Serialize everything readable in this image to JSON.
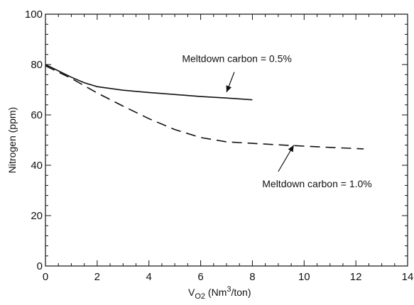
{
  "chart_data": {
    "type": "line",
    "xlim": [
      0,
      14
    ],
    "ylim": [
      0,
      100
    ],
    "x_ticks": [
      0,
      2,
      4,
      6,
      8,
      10,
      12,
      14
    ],
    "y_ticks": [
      0,
      20,
      40,
      60,
      80,
      100
    ],
    "x_tick_labels": [
      "0",
      "2",
      "4",
      "6",
      "8",
      "10",
      "12",
      "14"
    ],
    "y_tick_labels": [
      "0",
      "20",
      "40",
      "60",
      "80",
      "100"
    ],
    "x_minor_step": 0.5,
    "y_minor_step": 4,
    "xlabel": {
      "prefix": "V",
      "sub": "O2",
      "before_sup": " (Nm",
      "sup": "3",
      "after_sup": "/ton)"
    },
    "ylabel": "Nitrogen (ppm)",
    "grid": false,
    "series": [
      {
        "style": "solid",
        "color": "#111111",
        "x": [
          0,
          0.5,
          1.0,
          1.5,
          2.0,
          3,
          4,
          5,
          6,
          7,
          8
        ],
        "y": [
          80,
          77.5,
          75,
          72.8,
          71.2,
          69.8,
          68.9,
          68.1,
          67.3,
          66.7,
          66.0
        ]
      },
      {
        "style": "dashed",
        "color": "#111111",
        "x": [
          0,
          1,
          2,
          3,
          4,
          5,
          6,
          7,
          8,
          9,
          10,
          11,
          12.3
        ],
        "y": [
          79.5,
          74.5,
          68.7,
          63.5,
          58.5,
          54.2,
          51.0,
          49.3,
          48.7,
          48.1,
          47.6,
          47.1,
          46.5
        ]
      }
    ],
    "annotations": [
      {
        "text": "Meltdown carbon = 0.5%",
        "text_at": [
          7.4,
          81
        ],
        "arrow_from": [
          7.3,
          77
        ],
        "arrow_to": [
          7.0,
          69
        ]
      },
      {
        "text": "Meltdown carbon = 1.0%",
        "text_at": [
          10.5,
          31.3
        ],
        "arrow_from": [
          9.0,
          37.5
        ],
        "arrow_to": [
          9.6,
          48
        ]
      }
    ]
  }
}
